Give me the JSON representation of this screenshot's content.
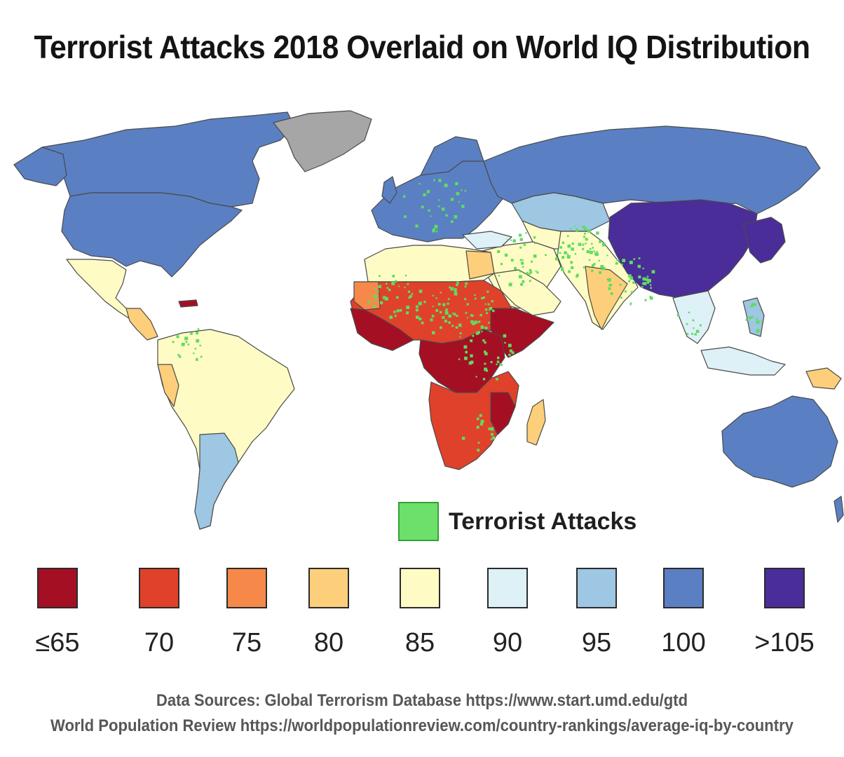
{
  "title": "Terrorist Attacks 2018 Overlaid on World IQ Distribution",
  "map": {
    "subject": "World IQ distribution with terrorist attack locations 2018",
    "colors": {
      "ocean": "#ffffff",
      "no_data": "#a6a6a6",
      "attack": "#5fdc5f",
      "attack_border": "#2e9e32",
      "border": "#4a4a4a"
    }
  },
  "attack_legend": {
    "label": "Terrorist Attacks",
    "color": "#6ce06a"
  },
  "iq_legend": [
    {
      "label": "≤65",
      "color": "#a50f23"
    },
    {
      "label": "70",
      "color": "#e0412a"
    },
    {
      "label": "75",
      "color": "#f6894a"
    },
    {
      "label": "80",
      "color": "#fdcf7a"
    },
    {
      "label": "85",
      "color": "#fefcc4"
    },
    {
      "label": "90",
      "color": "#ddf1f7"
    },
    {
      "label": "95",
      "color": "#9dc7e2"
    },
    {
      "label": "100",
      "color": "#5a80c3"
    },
    {
      "label": ">105",
      "color": "#4a2d99"
    }
  ],
  "sources": {
    "line1": "Data Sources: Global Terrorism Database https://www.start.umd.edu/gtd",
    "line2": "World Population Review https://worldpopulationreview.com/country-rankings/average-iq-by-country"
  }
}
